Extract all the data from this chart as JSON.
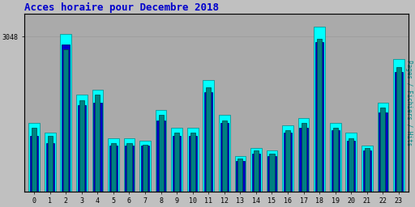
{
  "title": "Acces horaire pour Decembre 2018",
  "title_color": "#0000cc",
  "ylabel_right": "Pages / Fichiers / Hits",
  "hours": [
    0,
    1,
    2,
    3,
    4,
    5,
    6,
    7,
    8,
    9,
    10,
    11,
    12,
    13,
    14,
    15,
    16,
    17,
    18,
    19,
    20,
    21,
    22,
    23
  ],
  "hits": [
    1350,
    1150,
    3100,
    1900,
    2000,
    1050,
    1050,
    1000,
    1600,
    1250,
    1250,
    2200,
    1500,
    700,
    850,
    800,
    1300,
    1450,
    3250,
    1350,
    1150,
    900,
    1750,
    2600
  ],
  "fichiers": [
    1100,
    950,
    2900,
    1700,
    1750,
    900,
    900,
    900,
    1400,
    1100,
    1100,
    1950,
    1350,
    600,
    750,
    700,
    1150,
    1250,
    2950,
    1200,
    1000,
    800,
    1550,
    2350
  ],
  "pages": [
    1250,
    1100,
    2800,
    1800,
    1900,
    950,
    950,
    920,
    1500,
    1150,
    1150,
    2050,
    1400,
    650,
    800,
    750,
    1200,
    1350,
    3000,
    1250,
    1050,
    850,
    1650,
    2450
  ],
  "hits_color": "#00ffff",
  "fichiers_color": "#0000cc",
  "pages_color": "#008080",
  "bar_width": 0.7,
  "ylim": [
    0,
    3500
  ],
  "yticks": [
    3048
  ],
  "figsize": [
    5.12,
    2.56
  ],
  "dpi": 100,
  "fig_bg": "#c0c0c0",
  "ax_bg": "#aaaaaa"
}
